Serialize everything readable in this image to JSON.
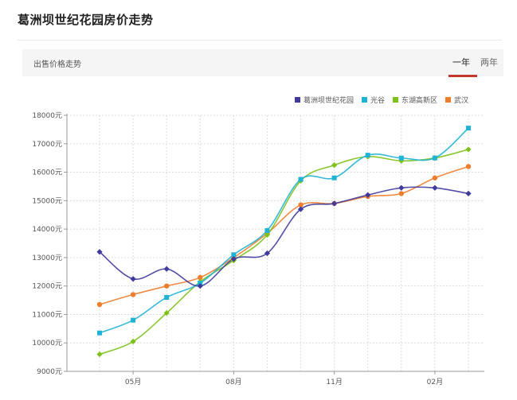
{
  "page": {
    "title": "葛洲坝世纪花园房价走势"
  },
  "panel": {
    "label": "出售价格走势",
    "tabs": [
      {
        "label": "一年",
        "active": true
      },
      {
        "label": "两年",
        "active": false
      }
    ]
  },
  "colors": {
    "grid": "#dddddd",
    "axis": "#999999",
    "accent": "#c0392b"
  },
  "chart_data": {
    "type": "line",
    "title": "",
    "xlabel": "",
    "ylabel": "",
    "ylim": [
      9000,
      18000
    ],
    "yticks": [
      9000,
      10000,
      11000,
      12000,
      13000,
      14000,
      15000,
      16000,
      17000,
      18000
    ],
    "ytick_suffix": "元",
    "xtick_labels": [
      {
        "index": 1,
        "label": "05月"
      },
      {
        "index": 4,
        "label": "08月"
      },
      {
        "index": 7,
        "label": "11月"
      },
      {
        "index": 10,
        "label": "02月"
      }
    ],
    "n_points": 12,
    "grid": true,
    "legend_position": "top-right",
    "series": [
      {
        "name": "葛洲坝世纪花园",
        "color": "#3f3a9c",
        "marker": "diamond",
        "values": [
          13200,
          12250,
          12600,
          12000,
          12950,
          13150,
          14700,
          14900,
          15200,
          15450,
          15450,
          15250
        ]
      },
      {
        "name": "光谷",
        "color": "#1fb3d6",
        "marker": "square",
        "values": [
          10350,
          10800,
          11600,
          12100,
          13100,
          13950,
          15750,
          15800,
          16600,
          16500,
          16500,
          17550
        ]
      },
      {
        "name": "东湖高新区",
        "color": "#7dc11a",
        "marker": "diamond",
        "values": [
          9600,
          10050,
          11050,
          12150,
          12900,
          13800,
          15700,
          16250,
          16550,
          16400,
          16500,
          16800
        ]
      },
      {
        "name": "武汉",
        "color": "#ee7d2e",
        "marker": "circle",
        "values": [
          11350,
          11700,
          12000,
          12300,
          13000,
          13850,
          14850,
          14900,
          15150,
          15250,
          15800,
          16200
        ]
      }
    ]
  }
}
